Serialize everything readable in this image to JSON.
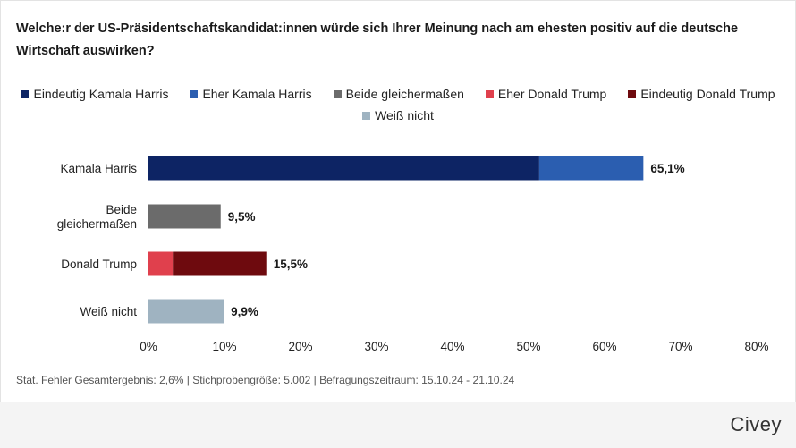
{
  "title": "Welche:r der US-Präsidentschaftskandidat:innen würde sich Ihrer Meinung nach am ehesten positiv auf die deutsche Wirtschaft auswirken?",
  "legend": [
    {
      "label": "Eindeutig Kamala Harris",
      "color": "#0d2464"
    },
    {
      "label": "Eher Kamala Harris",
      "color": "#2b5eb0"
    },
    {
      "label": "Beide gleichermaßen",
      "color": "#6b6b6b"
    },
    {
      "label": "Eher Donald Trump",
      "color": "#e0404d"
    },
    {
      "label": "Eindeutig Donald Trump",
      "color": "#6e0a0e"
    },
    {
      "label": "Weiß nicht",
      "color": "#9fb3c1"
    }
  ],
  "chart_data": {
    "type": "bar",
    "orientation": "horizontal",
    "stacked": true,
    "categories": [
      "Kamala Harris",
      "Beide gleichermaßen",
      "Donald Trump",
      "Weiß nicht"
    ],
    "category_lines": [
      [
        "Kamala Harris"
      ],
      [
        "Beide",
        "gleichermaßen"
      ],
      [
        "Donald Trump"
      ],
      [
        "Weiß nicht"
      ]
    ],
    "series": [
      {
        "name": "Eindeutig Kamala Harris",
        "color": "#0d2464",
        "values": [
          51.4,
          0,
          0,
          0
        ]
      },
      {
        "name": "Eher Kamala Harris",
        "color": "#2b5eb0",
        "values": [
          13.7,
          0,
          0,
          0
        ]
      },
      {
        "name": "Beide gleichermaßen",
        "color": "#6b6b6b",
        "values": [
          0,
          9.5,
          0,
          0
        ]
      },
      {
        "name": "Eher Donald Trump",
        "color": "#e0404d",
        "values": [
          0,
          0,
          3.2,
          0
        ]
      },
      {
        "name": "Eindeutig Donald Trump",
        "color": "#6e0a0e",
        "values": [
          0,
          0,
          12.3,
          0
        ]
      },
      {
        "name": "Weiß nicht",
        "color": "#9fb3c1",
        "values": [
          0,
          0,
          0,
          9.9
        ]
      }
    ],
    "totals": [
      "65,1%",
      "9,5%",
      "15,5%",
      "9,9%"
    ],
    "xlim": [
      0,
      80
    ],
    "xticks": [
      "0%",
      "10%",
      "20%",
      "30%",
      "40%",
      "50%",
      "60%",
      "70%",
      "80%"
    ],
    "xlabel": "",
    "ylabel": "",
    "grid": false
  },
  "footnote": "Stat. Fehler Gesamtergebnis: 2,6% | Stichprobengröße: 5.002 | Befragungszeitraum: 15.10.24 - 21.10.24",
  "brand": "Civey"
}
